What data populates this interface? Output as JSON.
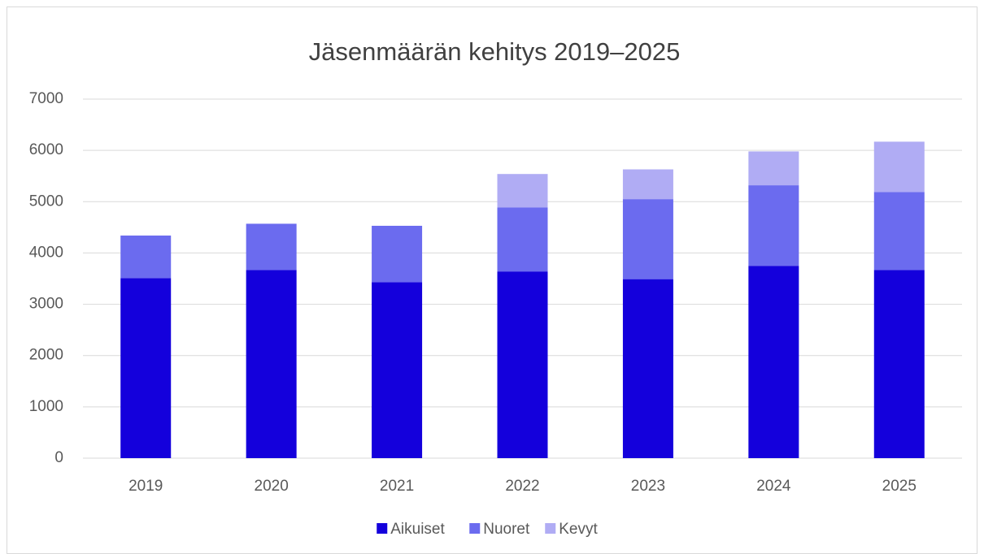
{
  "chart_data": {
    "type": "stacked_bar",
    "title": "Jäsenmäärän kehitys 2019–2025",
    "categories": [
      "2019",
      "2020",
      "2021",
      "2022",
      "2023",
      "2024",
      "2025"
    ],
    "series": [
      {
        "name": "Aikuiset",
        "color": "#1400dc",
        "values": [
          3510,
          3670,
          3430,
          3640,
          3490,
          3750,
          3670
        ]
      },
      {
        "name": "Nuoret",
        "color": "#6b6bef",
        "values": [
          830,
          900,
          1100,
          1250,
          1560,
          1570,
          1520
        ]
      },
      {
        "name": "Kevyt",
        "color": "#b0acf4",
        "values": [
          0,
          0,
          0,
          650,
          580,
          660,
          980
        ]
      }
    ],
    "ylim": [
      0,
      7000
    ],
    "yticks": [
      0,
      1000,
      2000,
      3000,
      4000,
      5000,
      6000,
      7000
    ],
    "grid": true,
    "legend": "bottom"
  }
}
